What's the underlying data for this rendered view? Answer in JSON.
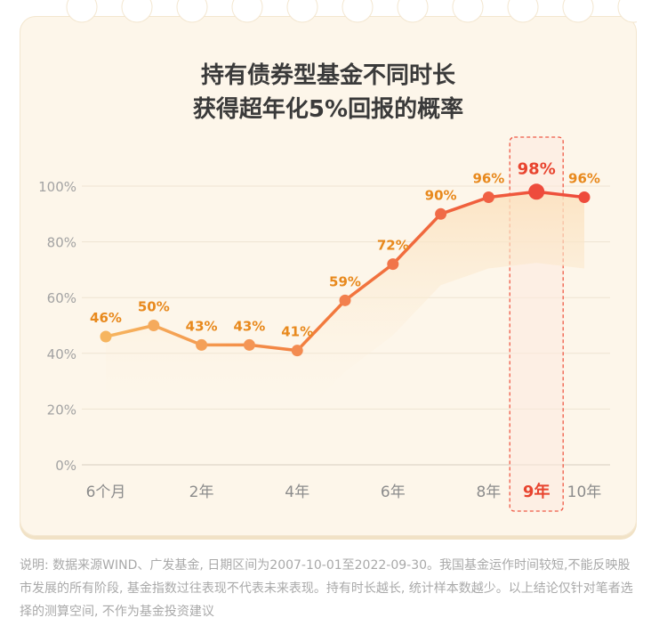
{
  "title_line1": "持有债券型基金不同时长",
  "title_line2": "获得超年化5%回报的概率",
  "footnote": "说明: 数据来源WIND、广发基金, 日期区间为2007-10-01至2022-09-30。我国基金运作时间较短,不能反映股市发展的所有阶段, 基金指数过往表现不代表未来表现。持有时长越长, 统计样本数越少。以上结论仅针对笔者选择的测算空间, 不作为基金投资建议",
  "colors": {
    "card_bg": "#fdf6ea",
    "line_start": "#f6b55f",
    "line_end": "#ee4b3c",
    "label_orange": "#e8891d",
    "label_highlight": "#e8442f",
    "axis_text": "#a3a3a3"
  },
  "chart_data": {
    "type": "line",
    "title": "持有债券型基金不同时长获得超年化5%回报的概率",
    "x": [
      1,
      2,
      3,
      4,
      5,
      6,
      7,
      8,
      9,
      10,
      11
    ],
    "xticks": [
      {
        "x": 1,
        "label": "6个月"
      },
      {
        "x": 3,
        "label": "2年"
      },
      {
        "x": 5,
        "label": "4年"
      },
      {
        "x": 7,
        "label": "6年"
      },
      {
        "x": 9,
        "label": "8年"
      },
      {
        "x": 10,
        "label": "9年"
      },
      {
        "x": 11,
        "label": "10年"
      }
    ],
    "values": [
      46,
      50,
      43,
      43,
      41,
      59,
      72,
      90,
      96,
      98,
      96
    ],
    "data_labels": [
      "46%",
      "50%",
      "43%",
      "43%",
      "41%",
      "59%",
      "72%",
      "90%",
      "96%",
      "98%",
      "96%"
    ],
    "yticks": [
      "0%",
      "20%",
      "40%",
      "60%",
      "80%",
      "100%"
    ],
    "ylim": [
      0,
      100
    ],
    "highlight_index": 9,
    "grid": true
  }
}
